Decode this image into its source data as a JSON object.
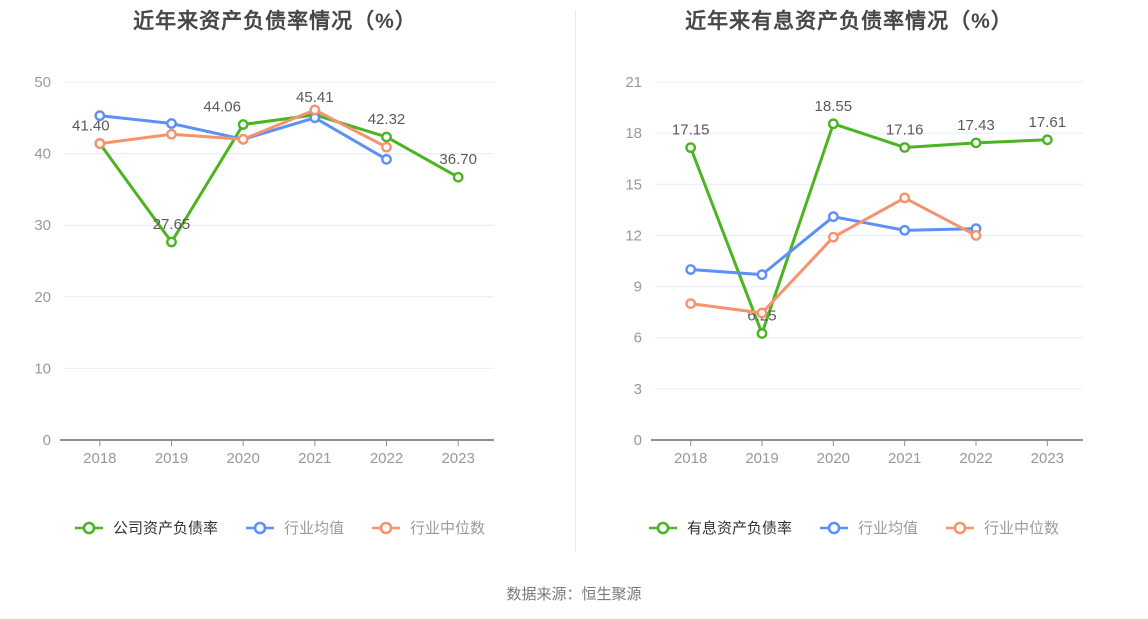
{
  "page": {
    "background": "#ffffff"
  },
  "palette": {
    "grid": "#e8ecf4",
    "axis": "#8f8f8f",
    "tick_label": "#999999",
    "value_label": "#5a5a5a",
    "title": "#474747",
    "legend_active": "#333333",
    "legend_muted": "#9b9b9b",
    "source_text": "#7a7a7a",
    "divider": "#ebebeb",
    "series_green": "#4cb422",
    "series_blue": "#5c90f6",
    "series_orange": "#f6936f"
  },
  "chart_data": [
    {
      "type": "line",
      "title": "近年来资产负债率情况（%）",
      "xlabel": "",
      "ylabel": "",
      "ylim": [
        0,
        50
      ],
      "yticks": [
        0,
        10,
        20,
        30,
        40,
        50
      ],
      "grid": "horizontal",
      "legend_position": "bottom",
      "categories": [
        "2018",
        "2019",
        "2020",
        "2021",
        "2022",
        "2023"
      ],
      "series": [
        {
          "name": "公司资产负债率",
          "color": "#4cb422",
          "values": [
            41.4,
            27.65,
            44.06,
            45.41,
            42.32,
            36.7
          ],
          "labels": [
            "41.40",
            "27.65",
            "44.06",
            "45.41",
            "42.32",
            "36.70"
          ]
        },
        {
          "name": "行业均值",
          "color": "#5c90f6",
          "values": [
            45.3,
            44.2,
            42.0,
            45.0,
            39.2,
            null
          ]
        },
        {
          "name": "行业中位数",
          "color": "#f6936f",
          "values": [
            41.4,
            42.7,
            42.0,
            46.1,
            40.9,
            null
          ]
        }
      ]
    },
    {
      "type": "line",
      "title": "近年来有息资产负债率情况（%）",
      "xlabel": "",
      "ylabel": "",
      "ylim": [
        0,
        21
      ],
      "yticks": [
        0,
        3,
        6,
        9,
        12,
        15,
        18,
        21
      ],
      "grid": "horizontal",
      "legend_position": "bottom",
      "categories": [
        "2018",
        "2019",
        "2020",
        "2021",
        "2022",
        "2023"
      ],
      "series": [
        {
          "name": "有息资产负债率",
          "color": "#4cb422",
          "values": [
            17.15,
            6.25,
            18.55,
            17.16,
            17.43,
            17.61
          ],
          "labels": [
            "17.15",
            "6.25",
            "18.55",
            "17.16",
            "17.43",
            "17.61"
          ]
        },
        {
          "name": "行业均值",
          "color": "#5c90f6",
          "values": [
            10.0,
            9.7,
            13.1,
            12.3,
            12.4,
            null
          ]
        },
        {
          "name": "行业中位数",
          "color": "#f6936f",
          "values": [
            8.0,
            7.45,
            11.9,
            14.2,
            12.0,
            null
          ]
        }
      ]
    }
  ],
  "footer": {
    "source": "数据来源：恒生聚源"
  }
}
